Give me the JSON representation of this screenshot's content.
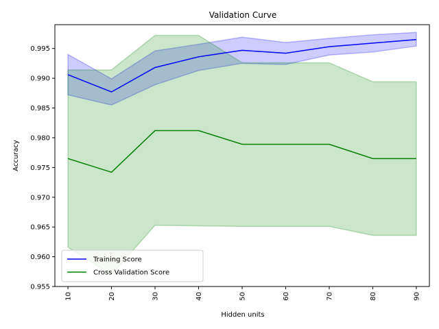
{
  "chart_data": {
    "type": "line",
    "title": "Validation Curve",
    "xlabel": "Hidden units",
    "ylabel": "Accuracy",
    "x": [
      10,
      20,
      30,
      40,
      50,
      60,
      70,
      80,
      90
    ],
    "xlim": [
      7,
      93
    ],
    "ylim": [
      0.955,
      0.999
    ],
    "yticks": [
      0.955,
      0.96,
      0.965,
      0.97,
      0.975,
      0.98,
      0.985,
      0.99,
      0.995
    ],
    "ytick_labels": [
      "0.955",
      "0.960",
      "0.965",
      "0.970",
      "0.975",
      "0.980",
      "0.985",
      "0.990",
      "0.995"
    ],
    "xtick_labels": [
      "10",
      "20",
      "30",
      "40",
      "50",
      "60",
      "70",
      "80",
      "90"
    ],
    "grid": false,
    "legend_position": "lower-left",
    "series": [
      {
        "name": "Training Score",
        "color": "#0000ff",
        "band_color": "#0000ff",
        "values": [
          0.9906,
          0.9877,
          0.9918,
          0.9936,
          0.9947,
          0.9942,
          0.9953,
          0.9959,
          0.9965
        ],
        "upper": [
          0.994,
          0.9899,
          0.9946,
          0.9957,
          0.9969,
          0.996,
          0.9967,
          0.9973,
          0.9977
        ],
        "lower": [
          0.9872,
          0.9855,
          0.9889,
          0.9913,
          0.9925,
          0.9923,
          0.9939,
          0.9944,
          0.9954
        ]
      },
      {
        "name": "Cross Validation Score",
        "color": "#008000",
        "band_color": "#008000",
        "values": [
          0.9765,
          0.9742,
          0.9812,
          0.9812,
          0.9789,
          0.9789,
          0.9789,
          0.9765,
          0.9765
        ],
        "upper": [
          0.9914,
          0.9914,
          0.9972,
          0.9972,
          0.9926,
          0.9926,
          0.9926,
          0.9894,
          0.9894
        ],
        "lower": [
          0.9616,
          0.957,
          0.9653,
          0.9652,
          0.9651,
          0.9651,
          0.9651,
          0.9636,
          0.9636
        ]
      }
    ]
  }
}
